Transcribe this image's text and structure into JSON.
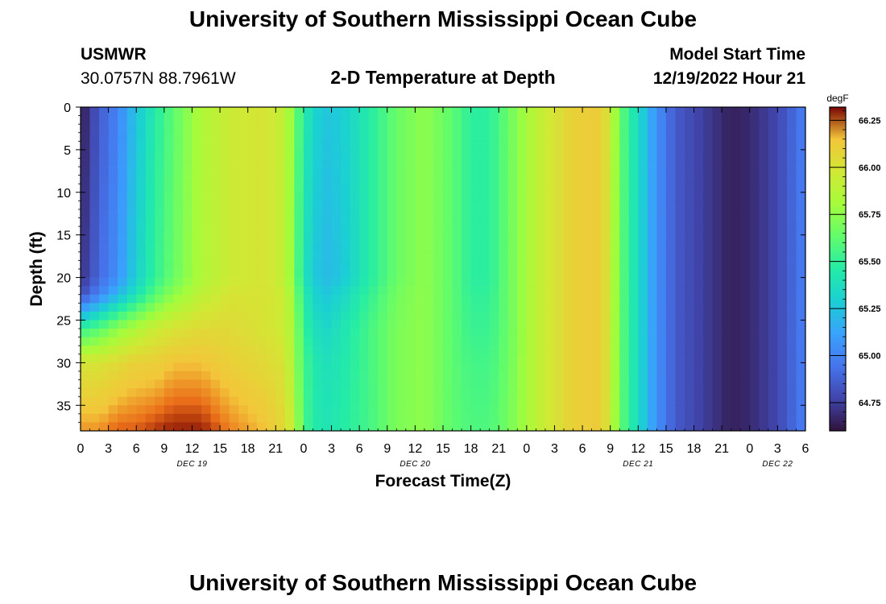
{
  "header": {
    "title": "University of Southern Mississippi Ocean Cube",
    "station": "USMWR",
    "coords": "30.0757N  88.7961W",
    "subtitle": "2-D Temperature at Depth",
    "model_start_label": "Model Start Time",
    "model_start_value": "12/19/2022 Hour 21"
  },
  "footer": {
    "title": "University of Southern Mississippi Ocean Cube"
  },
  "chart_data": {
    "type": "heatmap",
    "title": "2-D Temperature at Depth",
    "xlabel": "Forecast Time(Z)",
    "ylabel": "Depth (ft)",
    "x_range_hours": [
      0,
      78
    ],
    "xticks": [
      "0",
      "3",
      "6",
      "9",
      "12",
      "15",
      "18",
      "21",
      "0",
      "3",
      "6",
      "9",
      "12",
      "15",
      "18",
      "21",
      "0",
      "3",
      "6",
      "9",
      "12",
      "15",
      "18",
      "21",
      "0",
      "3",
      "6"
    ],
    "date_labels": [
      {
        "text": "DEC 19",
        "hour": 12
      },
      {
        "text": "DEC 20",
        "hour": 36
      },
      {
        "text": "DEC 21",
        "hour": 60
      },
      {
        "text": "DEC 22",
        "hour": 75
      }
    ],
    "ylim": [
      0,
      38
    ],
    "yticks": [
      0,
      5,
      10,
      15,
      20,
      25,
      30,
      35
    ],
    "colorbar": {
      "unit": "degF",
      "range": [
        64.6,
        66.32
      ],
      "ticks": [
        "66.25",
        "66.00",
        "65.75",
        "65.50",
        "65.25",
        "65.00",
        "64.75"
      ]
    },
    "depths_ft": [
      0,
      20,
      22,
      26,
      30,
      38
    ],
    "profiles": [
      {
        "hour": 0,
        "temps": [
          64.62,
          64.7,
          64.8,
          65.5,
          66.0,
          66.2
        ]
      },
      {
        "hour": 2,
        "temps": [
          64.85,
          64.9,
          65.0,
          65.6,
          66.0,
          66.2
        ]
      },
      {
        "hour": 4,
        "temps": [
          65.0,
          65.05,
          65.2,
          65.75,
          66.05,
          66.25
        ]
      },
      {
        "hour": 6,
        "temps": [
          65.25,
          65.3,
          65.4,
          65.85,
          66.1,
          66.25
        ]
      },
      {
        "hour": 8,
        "temps": [
          65.45,
          65.5,
          65.6,
          65.95,
          66.1,
          66.28
        ]
      },
      {
        "hour": 10,
        "temps": [
          65.62,
          65.65,
          65.75,
          66.0,
          66.15,
          66.3
        ]
      },
      {
        "hour": 13,
        "temps": [
          65.85,
          65.85,
          65.9,
          66.05,
          66.15,
          66.3
        ]
      },
      {
        "hour": 16,
        "temps": [
          65.95,
          65.95,
          66.0,
          66.05,
          66.1,
          66.22
        ]
      },
      {
        "hour": 20,
        "temps": [
          66.0,
          66.0,
          66.0,
          66.0,
          66.05,
          66.15
        ]
      },
      {
        "hour": 22,
        "temps": [
          65.9,
          65.9,
          65.95,
          65.95,
          66.0,
          66.05
        ]
      },
      {
        "hour": 23,
        "temps": [
          65.7,
          65.7,
          65.75,
          65.8,
          65.8,
          65.9
        ]
      },
      {
        "hour": 24,
        "temps": [
          65.45,
          65.4,
          65.45,
          65.5,
          65.55,
          65.55
        ]
      },
      {
        "hour": 26,
        "temps": [
          65.25,
          65.2,
          65.25,
          65.32,
          65.38,
          65.4
        ]
      },
      {
        "hour": 28,
        "temps": [
          65.28,
          65.25,
          65.32,
          65.4,
          65.42,
          65.45
        ]
      },
      {
        "hour": 31,
        "temps": [
          65.45,
          65.45,
          65.5,
          65.55,
          65.55,
          65.55
        ]
      },
      {
        "hour": 34,
        "temps": [
          65.65,
          65.65,
          65.68,
          65.7,
          65.7,
          65.7
        ]
      },
      {
        "hour": 37,
        "temps": [
          65.75,
          65.75,
          65.75,
          65.75,
          65.75,
          65.75
        ]
      },
      {
        "hour": 40,
        "temps": [
          65.62,
          65.62,
          65.62,
          65.62,
          65.62,
          65.62
        ]
      },
      {
        "hour": 42,
        "temps": [
          65.48,
          65.48,
          65.5,
          65.52,
          65.55,
          65.58
        ]
      },
      {
        "hour": 44,
        "temps": [
          65.48,
          65.48,
          65.5,
          65.52,
          65.55,
          65.58
        ]
      },
      {
        "hour": 46,
        "temps": [
          65.65,
          65.65,
          65.65,
          65.65,
          65.66,
          65.68
        ]
      },
      {
        "hour": 48,
        "temps": [
          65.82,
          65.82,
          65.82,
          65.82,
          65.82,
          65.82
        ]
      },
      {
        "hour": 50,
        "temps": [
          65.95,
          65.95,
          65.95,
          65.95,
          65.95,
          65.95
        ]
      },
      {
        "hour": 53,
        "temps": [
          66.1,
          66.1,
          66.1,
          66.1,
          66.1,
          66.1
        ]
      },
      {
        "hour": 56,
        "temps": [
          66.12,
          66.12,
          66.12,
          66.12,
          66.12,
          66.12
        ]
      },
      {
        "hour": 57,
        "temps": [
          65.95,
          65.95,
          65.95,
          65.95,
          65.95,
          65.95
        ]
      },
      {
        "hour": 58,
        "temps": [
          65.65,
          65.65,
          65.65,
          65.65,
          65.65,
          65.65
        ]
      },
      {
        "hour": 60,
        "temps": [
          65.35,
          65.35,
          65.35,
          65.35,
          65.35,
          65.35
        ]
      },
      {
        "hour": 62,
        "temps": [
          65.05,
          65.05,
          65.05,
          65.05,
          65.05,
          65.05
        ]
      },
      {
        "hour": 64,
        "temps": [
          64.85,
          64.85,
          64.85,
          64.85,
          64.85,
          64.85
        ]
      },
      {
        "hour": 67,
        "temps": [
          64.75,
          64.75,
          64.75,
          64.75,
          64.75,
          64.75
        ]
      },
      {
        "hour": 70,
        "temps": [
          64.65,
          64.65,
          64.65,
          64.65,
          64.65,
          64.65
        ]
      },
      {
        "hour": 72,
        "temps": [
          64.68,
          64.68,
          64.68,
          64.68,
          64.68,
          64.68
        ]
      },
      {
        "hour": 75,
        "temps": [
          64.78,
          64.78,
          64.78,
          64.78,
          64.78,
          64.78
        ]
      },
      {
        "hour": 77,
        "temps": [
          64.92,
          64.92,
          64.92,
          64.92,
          64.92,
          64.92
        ]
      },
      {
        "hour": 78,
        "temps": [
          64.98,
          64.98,
          64.98,
          64.98,
          64.98,
          64.98
        ]
      }
    ]
  }
}
